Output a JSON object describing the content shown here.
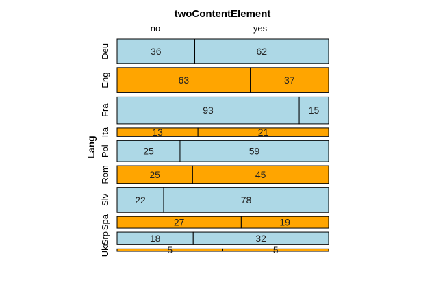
{
  "chart_data": {
    "type": "mosaic",
    "title": "twoContentElement",
    "ylabel": "Lang",
    "columns": [
      "no",
      "yes"
    ],
    "rows": [
      {
        "label": "Deu",
        "values": [
          36,
          62
        ],
        "color": "#add8e6"
      },
      {
        "label": "Eng",
        "values": [
          63,
          37
        ],
        "color": "#ffa500"
      },
      {
        "label": "Fra",
        "values": [
          93,
          15
        ],
        "color": "#add8e6"
      },
      {
        "label": "Ita",
        "values": [
          13,
          21
        ],
        "color": "#ffa500"
      },
      {
        "label": "Pol",
        "values": [
          25,
          59
        ],
        "color": "#add8e6"
      },
      {
        "label": "Rom",
        "values": [
          25,
          45
        ],
        "color": "#ffa500"
      },
      {
        "label": "Slv",
        "values": [
          22,
          78
        ],
        "color": "#add8e6"
      },
      {
        "label": "Spa",
        "values": [
          27,
          19
        ],
        "color": "#ffa500"
      },
      {
        "label": "Srp",
        "values": [
          18,
          32
        ],
        "color": "#add8e6"
      },
      {
        "label": "Ukr",
        "values": [
          5,
          5
        ],
        "color": "#ffa500"
      }
    ]
  }
}
